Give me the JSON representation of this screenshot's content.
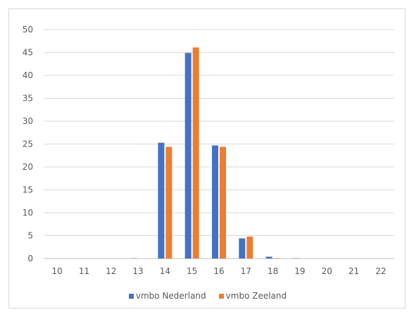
{
  "chart_data": {
    "type": "bar",
    "categories": [
      "10",
      "11",
      "12",
      "13",
      "14",
      "15",
      "16",
      "17",
      "18",
      "19",
      "20",
      "21",
      "22"
    ],
    "series": [
      {
        "name": "vmbo Nederland",
        "color": "#4472c4",
        "values": [
          0,
          0,
          0,
          0.05,
          25.3,
          44.9,
          24.7,
          4.4,
          0.4,
          0.05,
          0,
          0,
          0
        ]
      },
      {
        "name": "vmbo Zeeland",
        "color": "#ed7d31",
        "values": [
          0,
          0,
          0,
          0,
          24.4,
          46.1,
          24.4,
          4.8,
          0.1,
          0,
          0,
          0,
          0
        ]
      }
    ],
    "yticks": [
      0,
      5,
      10,
      15,
      20,
      25,
      30,
      35,
      40,
      45,
      50
    ],
    "ylim": [
      0,
      50
    ],
    "grid": true,
    "legend_position": "bottom"
  }
}
